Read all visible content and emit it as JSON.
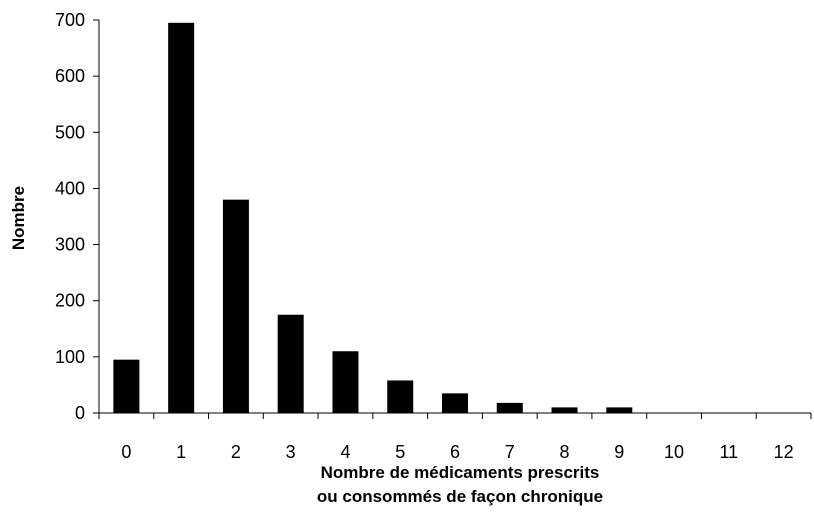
{
  "chart_data": {
    "type": "bar",
    "title": "",
    "xlabel_lines": [
      "Nombre de médicaments prescrits",
      "ou consommés de façon chronique"
    ],
    "ylabel": "Nombre",
    "categories": [
      "0",
      "1",
      "2",
      "3",
      "4",
      "5",
      "6",
      "7",
      "8",
      "9",
      "10",
      "11",
      "12"
    ],
    "values": [
      95,
      695,
      380,
      175,
      110,
      58,
      35,
      18,
      10,
      10,
      0,
      0,
      0
    ],
    "ylim": [
      0,
      700
    ],
    "yticks": [
      0,
      100,
      200,
      300,
      400,
      500,
      600,
      700
    ],
    "bar_color": "#000000",
    "grid": false,
    "legend": "none"
  }
}
